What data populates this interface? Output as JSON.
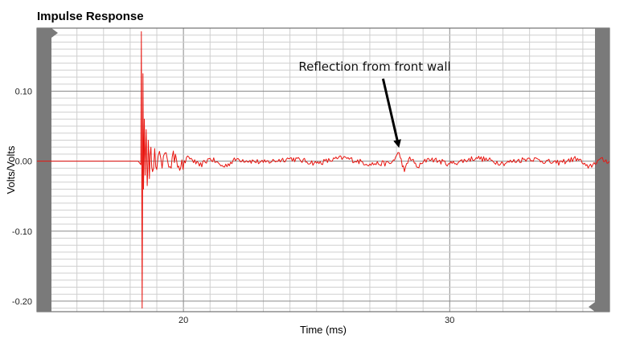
{
  "chart_data": {
    "type": "line",
    "title": "Impulse Response",
    "xlabel": "Time (ms)",
    "ylabel": "Volts/Volts",
    "xlim": [
      14.5,
      36.0
    ],
    "ylim": [
      -0.215,
      0.19
    ],
    "x_ticks": [
      20,
      30
    ],
    "x_tick_labels": [
      "20",
      "30"
    ],
    "y_ticks": [
      0.1,
      0.0,
      -0.1,
      -0.2
    ],
    "y_tick_labels": [
      "0.10",
      "0.00",
      "-0.10",
      "-0.20"
    ],
    "grid": true,
    "series": [
      {
        "color": "#e8150f",
        "x": [
          14.5,
          16.0,
          17.5,
          18.3,
          18.4,
          18.42,
          18.45,
          18.48,
          18.5,
          18.53,
          18.56,
          18.6,
          18.64,
          18.68,
          18.72,
          18.78,
          18.84,
          18.92,
          19.0,
          19.1,
          19.2,
          19.35,
          19.5,
          19.7,
          19.9,
          20.2,
          20.6,
          21.0,
          21.5,
          22.0,
          23.0,
          24.0,
          25.0,
          26.0,
          27.0,
          27.8,
          28.1,
          28.3,
          28.5,
          28.8,
          29.2,
          30.0,
          31.0,
          32.0,
          33.0,
          34.0,
          34.8,
          35.2,
          35.6,
          36.0
        ],
        "y": [
          0.0,
          0.0,
          0.0,
          0.0,
          -0.005,
          0.185,
          -0.21,
          0.125,
          -0.04,
          0.06,
          -0.02,
          0.045,
          -0.035,
          0.03,
          -0.025,
          0.02,
          -0.015,
          0.018,
          -0.012,
          0.014,
          -0.01,
          0.012,
          -0.008,
          0.01,
          -0.009,
          0.006,
          -0.007,
          0.004,
          -0.008,
          0.003,
          -0.002,
          0.004,
          -0.003,
          0.005,
          -0.004,
          -0.003,
          0.012,
          -0.015,
          0.006,
          -0.009,
          0.004,
          -0.004,
          0.005,
          -0.003,
          0.004,
          -0.003,
          0.004,
          -0.01,
          0.002,
          0.0
        ]
      }
    ],
    "annotations": [
      {
        "text": "Reflection from front wall",
        "x": 28.1,
        "y": 0.012
      }
    ]
  }
}
